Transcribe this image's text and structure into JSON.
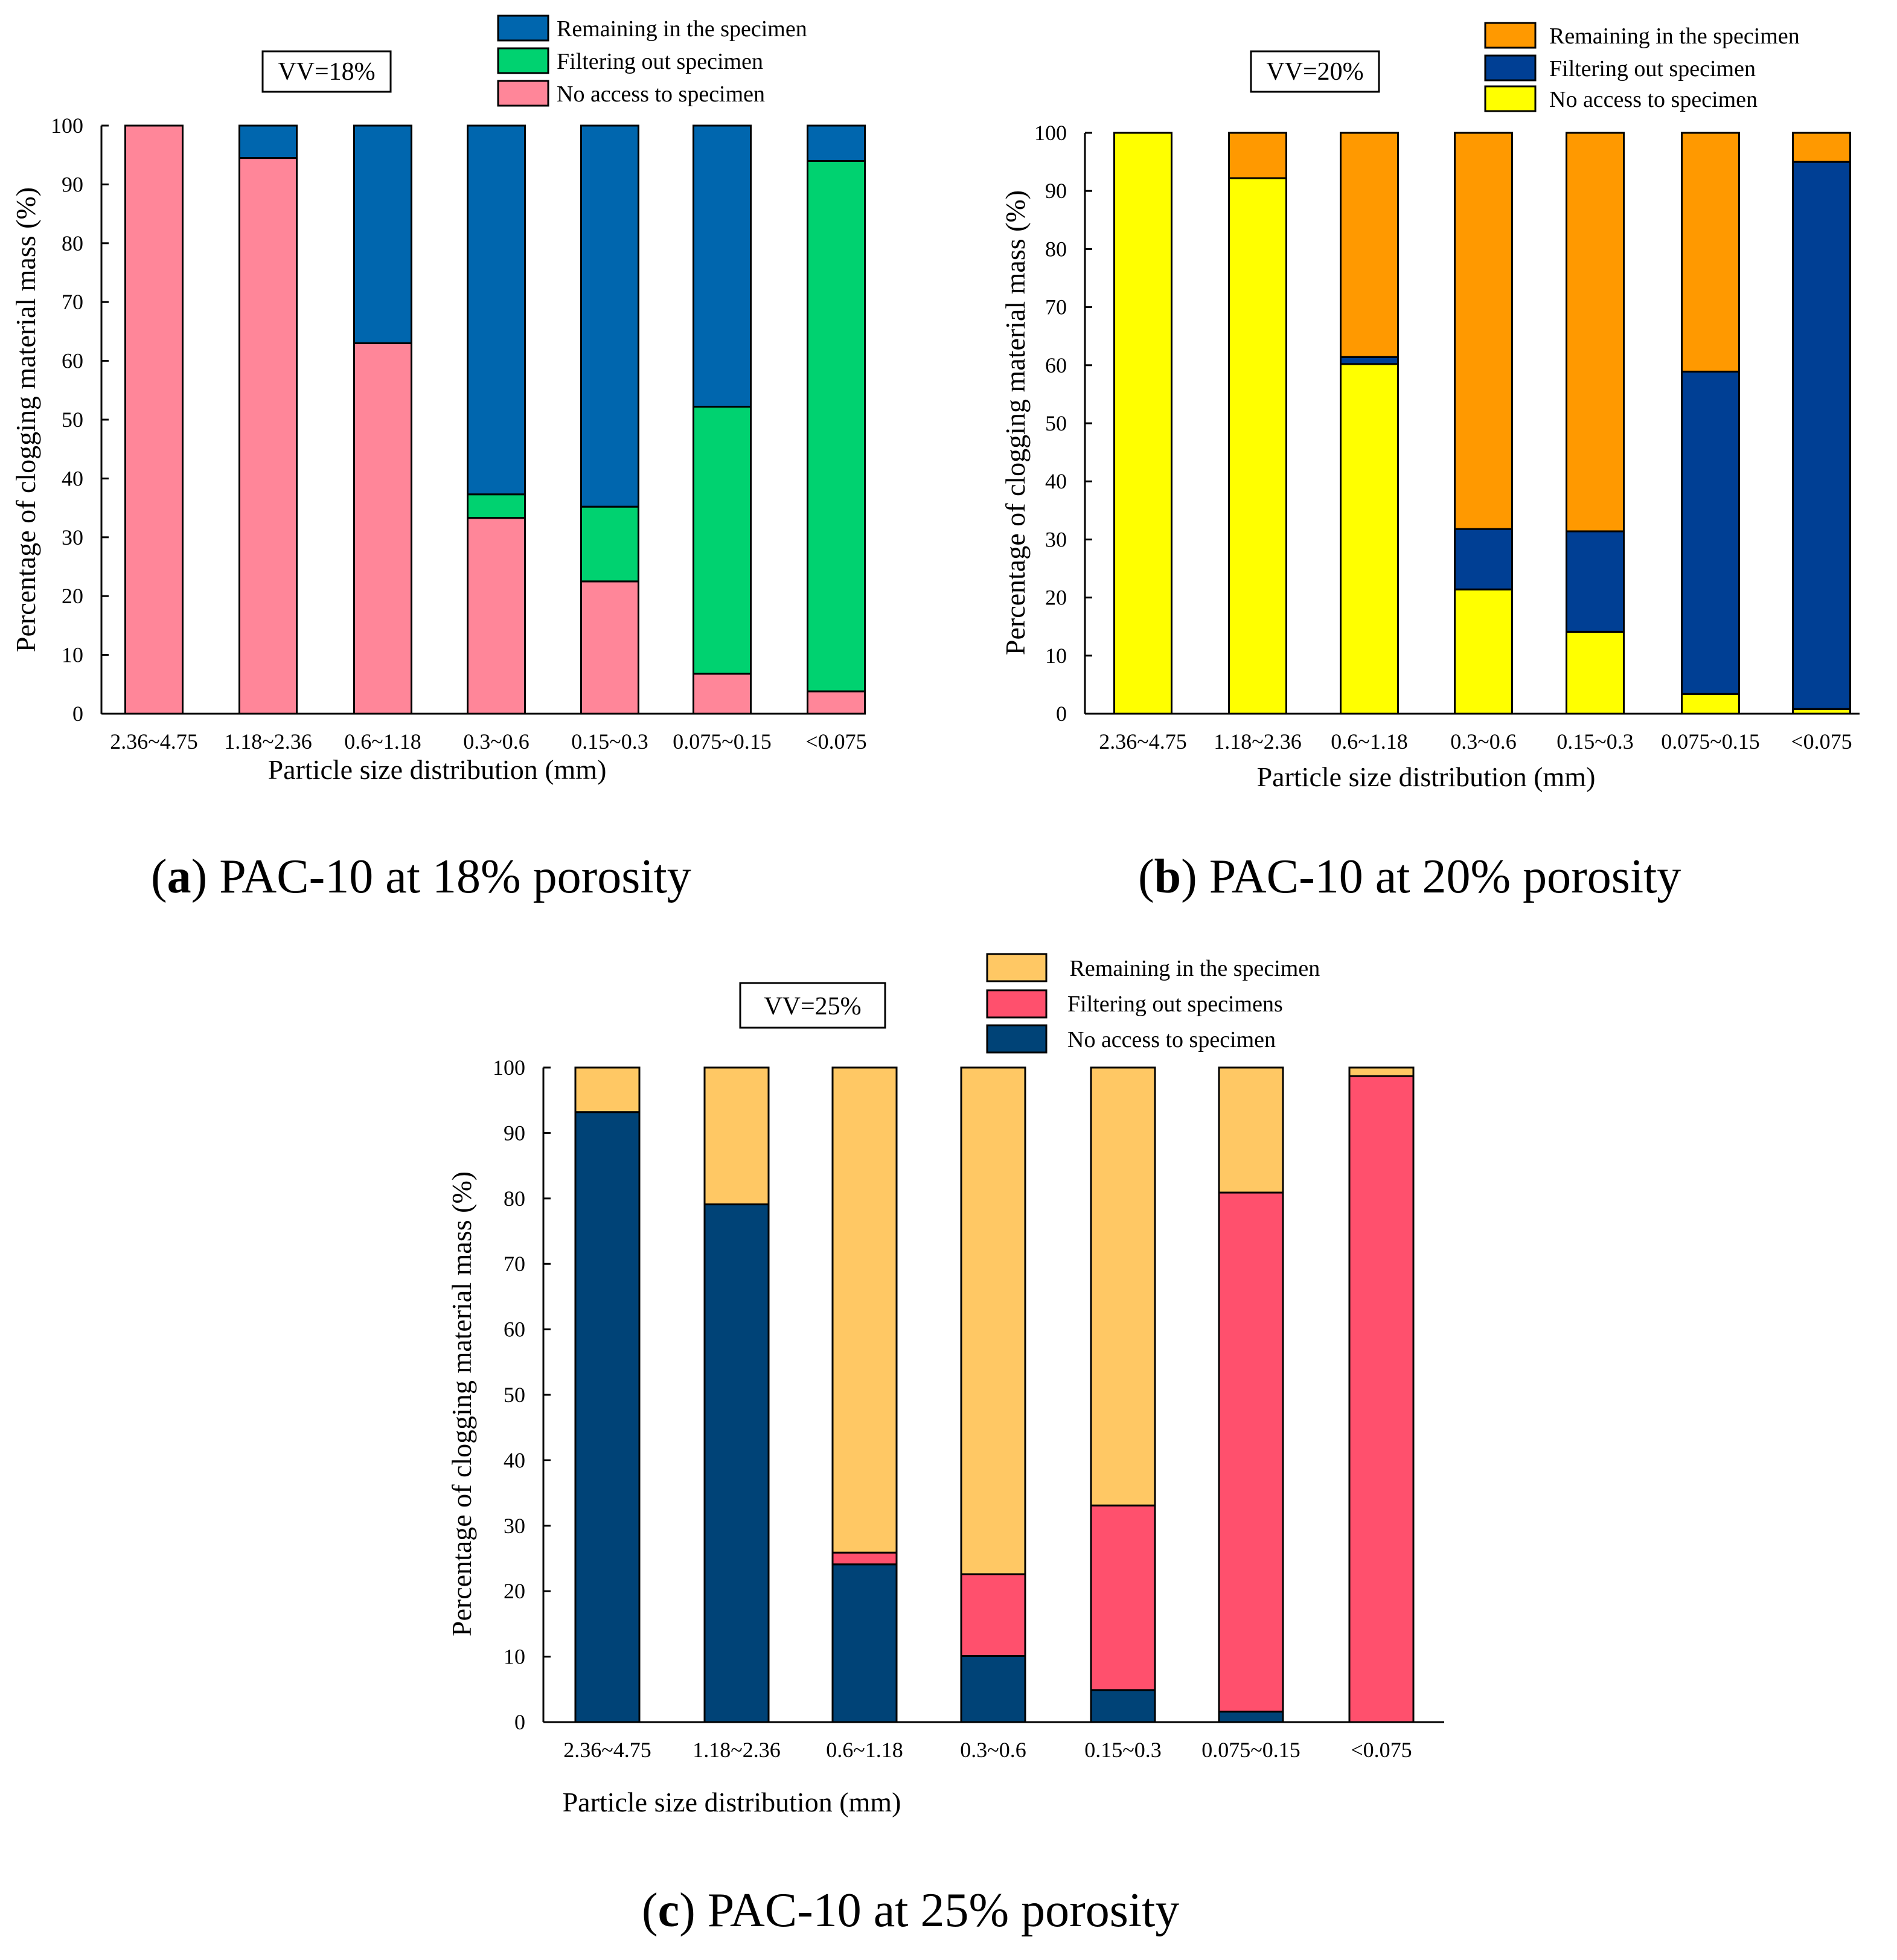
{
  "figure": {
    "panels": [
      {
        "id": "a",
        "caption": {
          "prefix": "(",
          "letter": "a",
          "text": ") PAC-10 at 18% porosity"
        },
        "vv_label": "VV=18%"
      },
      {
        "id": "b",
        "caption": {
          "prefix": "(",
          "letter": "b",
          "text": ") PAC-10 at 20% porosity"
        },
        "vv_label": "VV=20%"
      },
      {
        "id": "c",
        "caption": {
          "prefix": "(",
          "letter": "c",
          "text": ") PAC-10 at 25% porosity"
        },
        "vv_label": "VV=25%"
      }
    ]
  },
  "chart_data": [
    {
      "type": "bar",
      "stacked": true,
      "panel": "a",
      "title": "VV=18%",
      "xlabel": "Particle size distribution (mm)",
      "ylabel": "Percentage of clogging material mass (%)",
      "ylim": [
        0,
        100
      ],
      "yticks": [
        0,
        10,
        20,
        30,
        40,
        50,
        60,
        70,
        80,
        90,
        100
      ],
      "categories": [
        "2.36~4.75",
        "1.18~2.36",
        "0.6~1.18",
        "0.3~0.6",
        "0.15~0.3",
        "0.075~0.15",
        "<0.075"
      ],
      "legend_position": "top-right",
      "legend": [
        "Remaining in the specimen",
        "Filtering out specimen",
        "No access to specimen"
      ],
      "series": [
        {
          "name": "No access to specimen",
          "color": "#FF8699",
          "values": [
            100,
            94.5,
            63,
            33.3,
            22.5,
            6.8,
            3.8
          ]
        },
        {
          "name": "Filtering out specimen",
          "color": "#00D270",
          "values": [
            0,
            0,
            0,
            4,
            12.7,
            45.4,
            90.2
          ]
        },
        {
          "name": "Remaining in the specimen",
          "color": "#0066AE",
          "values": [
            0,
            5.5,
            37,
            62.7,
            64.8,
            47.8,
            6
          ]
        }
      ]
    },
    {
      "type": "bar",
      "stacked": true,
      "panel": "b",
      "title": "VV=20%",
      "xlabel": "Particle size distribution (mm)",
      "ylabel": "Percentage of clogging material mass (%)",
      "ylim": [
        0,
        100
      ],
      "yticks": [
        0,
        10,
        20,
        30,
        40,
        50,
        60,
        70,
        80,
        90,
        100
      ],
      "categories": [
        "2.36~4.75",
        "1.18~2.36",
        "0.6~1.18",
        "0.3~0.6",
        "0.15~0.3",
        "0.075~0.15",
        "<0.075"
      ],
      "legend_position": "top-right",
      "legend": [
        "Remaining in the specimen",
        "Filtering out specimen",
        "No access to specimen"
      ],
      "series": [
        {
          "name": "No access to specimen",
          "color": "#FFFF00",
          "values": [
            100,
            92.2,
            60.2,
            21.4,
            14.1,
            3.4,
            0.8
          ]
        },
        {
          "name": "Filtering out specimen",
          "color": "#003F94",
          "values": [
            0,
            0,
            1.2,
            10.4,
            17.3,
            55.5,
            94.2
          ]
        },
        {
          "name": "Remaining in the specimen",
          "color": "#FF9900",
          "values": [
            0,
            7.8,
            38.6,
            68.2,
            68.6,
            41.1,
            5
          ]
        }
      ]
    },
    {
      "type": "bar",
      "stacked": true,
      "panel": "c",
      "title": "VV=25%",
      "xlabel": "Particle size distribution (mm)",
      "ylabel": "Percentage of clogging material mass (%)",
      "ylim": [
        0,
        100
      ],
      "yticks": [
        0,
        10,
        20,
        30,
        40,
        50,
        60,
        70,
        80,
        90,
        100
      ],
      "categories": [
        "2.36~4.75",
        "1.18~2.36",
        "0.6~1.18",
        "0.3~0.6",
        "0.15~0.3",
        "0.075~0.15",
        "<0.075"
      ],
      "legend_position": "top-right",
      "legend": [
        " Remaining in the specimen",
        "Filtering out specimens",
        "No access to specimen"
      ],
      "series": [
        {
          "name": "No access to specimen",
          "color": "#004377",
          "values": [
            93.2,
            79.1,
            24.1,
            10.1,
            4.9,
            1.6,
            0
          ]
        },
        {
          "name": "Filtering out specimens",
          "color": "#FF506D",
          "values": [
            0,
            0,
            1.8,
            12.5,
            28.2,
            79.3,
            98.7
          ]
        },
        {
          "name": "Remaining in the specimen",
          "color": "#FFC864",
          "values": [
            6.8,
            20.9,
            74.1,
            77.4,
            66.9,
            19.1,
            1.3
          ]
        }
      ]
    }
  ]
}
